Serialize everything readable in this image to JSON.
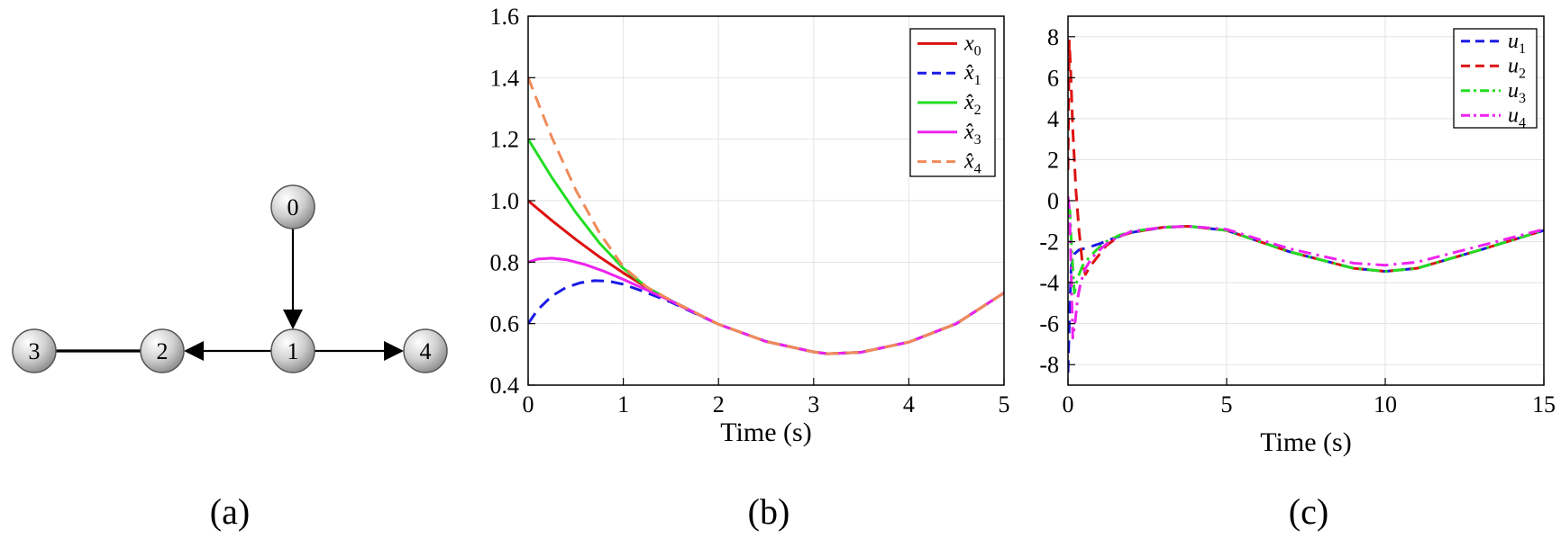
{
  "captions": {
    "a": "(a)",
    "b": "(b)",
    "c": "(c)"
  },
  "graph": {
    "nodes": [
      {
        "id": "0",
        "label": "0"
      },
      {
        "id": "1",
        "label": "1"
      },
      {
        "id": "2",
        "label": "2"
      },
      {
        "id": "3",
        "label": "3"
      },
      {
        "id": "4",
        "label": "4"
      }
    ],
    "edges": [
      {
        "from": "0",
        "to": "1",
        "directed": true
      },
      {
        "from": "1",
        "to": "2",
        "directed": true
      },
      {
        "from": "1",
        "to": "4",
        "directed": true
      },
      {
        "from": "3",
        "to": "2",
        "directed": false
      }
    ],
    "node_fill": "#d9d9d9"
  },
  "chart_data": [
    {
      "type": "line",
      "xlabel": "Time (s)",
      "ylabel": "",
      "xlim": [
        0,
        5
      ],
      "ylim": [
        0.4,
        1.6
      ],
      "xticks": [
        0,
        1,
        2,
        3,
        4,
        5
      ],
      "yticks": [
        0.4,
        0.6,
        0.8,
        1.0,
        1.2,
        1.4,
        1.6
      ],
      "ytick_labels": [
        "0.4",
        "0.6",
        "0.8",
        "1.0",
        "1.2",
        "1.4",
        "1.6"
      ],
      "grid": true,
      "legend_position": "top-right",
      "series": [
        {
          "name": "x0",
          "legend_base": "x",
          "legend_sub": "0",
          "hat": false,
          "color": "#dd1111",
          "dash": "solid",
          "x": [
            0,
            0.25,
            0.5,
            0.75,
            1.0,
            1.25,
            1.5,
            2.0,
            2.5,
            3.0,
            3.15,
            3.5,
            4.0,
            4.5,
            5.0
          ],
          "y": [
            1.0,
            0.935,
            0.874,
            0.817,
            0.765,
            0.717,
            0.673,
            0.598,
            0.542,
            0.508,
            0.502,
            0.507,
            0.54,
            0.6,
            0.7
          ]
        },
        {
          "name": "x̂1",
          "legend_base": "x̂",
          "legend_sub": "1",
          "hat": true,
          "color": "#1a1ae6",
          "dash": "dashed",
          "x": [
            0,
            0.1,
            0.25,
            0.4,
            0.55,
            0.7,
            0.85,
            1.0,
            1.2,
            1.4,
            1.5,
            2.0,
            2.5,
            3.0,
            3.15,
            3.5,
            4.0,
            4.5,
            5.0
          ],
          "y": [
            0.6,
            0.645,
            0.69,
            0.718,
            0.733,
            0.74,
            0.738,
            0.728,
            0.706,
            0.682,
            0.67,
            0.598,
            0.542,
            0.508,
            0.502,
            0.507,
            0.54,
            0.6,
            0.7
          ]
        },
        {
          "name": "x̂2",
          "legend_base": "x̂",
          "legend_sub": "2",
          "hat": true,
          "color": "#22dd22",
          "dash": "solid",
          "x": [
            0,
            0.25,
            0.5,
            0.75,
            1.0,
            1.25,
            1.5,
            2.0,
            2.5,
            3.0,
            3.15,
            3.5,
            4.0,
            4.5,
            5.0
          ],
          "y": [
            1.2,
            1.075,
            0.962,
            0.862,
            0.78,
            0.718,
            0.675,
            0.598,
            0.542,
            0.508,
            0.502,
            0.507,
            0.54,
            0.6,
            0.7
          ]
        },
        {
          "name": "x̂3",
          "legend_base": "x̂",
          "legend_sub": "3",
          "hat": true,
          "color": "#ee22ee",
          "dash": "solid",
          "x": [
            0,
            0.1,
            0.25,
            0.4,
            0.6,
            0.8,
            1.0,
            1.2,
            1.5,
            2.0,
            2.5,
            3.0,
            3.15,
            3.5,
            4.0,
            4.5,
            5.0
          ],
          "y": [
            0.8,
            0.81,
            0.813,
            0.808,
            0.792,
            0.77,
            0.744,
            0.716,
            0.674,
            0.598,
            0.542,
            0.508,
            0.502,
            0.507,
            0.54,
            0.6,
            0.7
          ]
        },
        {
          "name": "x̂4",
          "legend_base": "x̂",
          "legend_sub": "4",
          "hat": true,
          "color": "#f08a5a",
          "dash": "dashed",
          "x": [
            0,
            0.25,
            0.5,
            0.75,
            1.0,
            1.25,
            1.5,
            2.0,
            2.5,
            3.0,
            3.15,
            3.5,
            4.0,
            4.5,
            5.0
          ],
          "y": [
            1.4,
            1.205,
            1.035,
            0.895,
            0.785,
            0.718,
            0.676,
            0.598,
            0.542,
            0.508,
            0.502,
            0.507,
            0.54,
            0.6,
            0.7
          ]
        }
      ]
    },
    {
      "type": "line",
      "xlabel": "Time (s)",
      "ylabel": "",
      "xlim": [
        0,
        15
      ],
      "ylim": [
        -9,
        9
      ],
      "xticks": [
        0,
        5,
        10,
        15
      ],
      "yticks": [
        -8,
        -6,
        -4,
        -2,
        0,
        2,
        4,
        6,
        8
      ],
      "ytick_labels": [
        "-8",
        "-6",
        "-4",
        "-2",
        "0",
        "2",
        "4",
        "6",
        "8"
      ],
      "grid": true,
      "legend_position": "top-right",
      "series": [
        {
          "name": "u1",
          "legend_base": "u",
          "legend_sub": "1",
          "hat": false,
          "color": "#1a1ae6",
          "dash": "dashed",
          "x": [
            0,
            0.04,
            0.1,
            0.2,
            0.35,
            0.6,
            1.0,
            1.5,
            2.0,
            3.0,
            3.8,
            5.0,
            7.0,
            9.0,
            10.0,
            11.0,
            13.0,
            15.0
          ],
          "y": [
            -8.4,
            -6.0,
            -3.2,
            -2.6,
            -2.4,
            -2.3,
            -2.1,
            -1.8,
            -1.55,
            -1.3,
            -1.25,
            -1.45,
            -2.5,
            -3.3,
            -3.45,
            -3.3,
            -2.4,
            -1.45
          ]
        },
        {
          "name": "u2",
          "legend_base": "u",
          "legend_sub": "2",
          "hat": false,
          "color": "#dd1111",
          "dash": "dashed",
          "x": [
            0,
            0.04,
            0.08,
            0.15,
            0.25,
            0.35,
            0.45,
            0.55,
            0.7,
            0.9,
            1.2,
            1.6,
            2.0,
            3.0,
            3.8,
            5.0,
            7.0,
            9.0,
            10.0,
            11.0,
            13.0,
            15.0
          ],
          "y": [
            1.5,
            7.8,
            6.5,
            3.5,
            0.5,
            -1.5,
            -3.0,
            -3.6,
            -3.2,
            -2.8,
            -2.2,
            -1.75,
            -1.55,
            -1.3,
            -1.25,
            -1.45,
            -2.5,
            -3.3,
            -3.45,
            -3.3,
            -2.4,
            -1.45
          ]
        },
        {
          "name": "u3",
          "legend_base": "u",
          "legend_sub": "3",
          "hat": false,
          "color": "#22dd22",
          "dash": "dashdot",
          "x": [
            0,
            0.06,
            0.12,
            0.2,
            0.3,
            0.45,
            0.65,
            0.9,
            1.2,
            1.6,
            2.0,
            3.0,
            3.8,
            5.0,
            7.0,
            9.0,
            10.0,
            11.0,
            13.0,
            15.0
          ],
          "y": [
            -0.3,
            -0.5,
            -2.5,
            -4.5,
            -3.8,
            -3.2,
            -2.8,
            -2.4,
            -2.0,
            -1.7,
            -1.5,
            -1.3,
            -1.25,
            -1.45,
            -2.5,
            -3.3,
            -3.45,
            -3.3,
            -2.4,
            -1.45
          ]
        },
        {
          "name": "u4",
          "legend_base": "u",
          "legend_sub": "4",
          "hat": false,
          "color": "#ee22ee",
          "dash": "dashdot",
          "x": [
            0,
            0.05,
            0.1,
            0.15,
            0.22,
            0.3,
            0.4,
            0.55,
            0.75,
            1.0,
            1.3,
            1.7,
            2.0,
            3.0,
            3.8,
            5.0,
            7.0,
            9.0,
            10.0,
            11.0,
            13.0,
            15.0
          ],
          "y": [
            0.2,
            -0.5,
            -3.5,
            -6.7,
            -6.0,
            -4.8,
            -4.0,
            -3.3,
            -2.8,
            -2.4,
            -2.0,
            -1.7,
            -1.5,
            -1.3,
            -1.25,
            -1.4,
            -2.35,
            -3.05,
            -3.15,
            -3.0,
            -2.2,
            -1.4
          ]
        }
      ]
    }
  ]
}
